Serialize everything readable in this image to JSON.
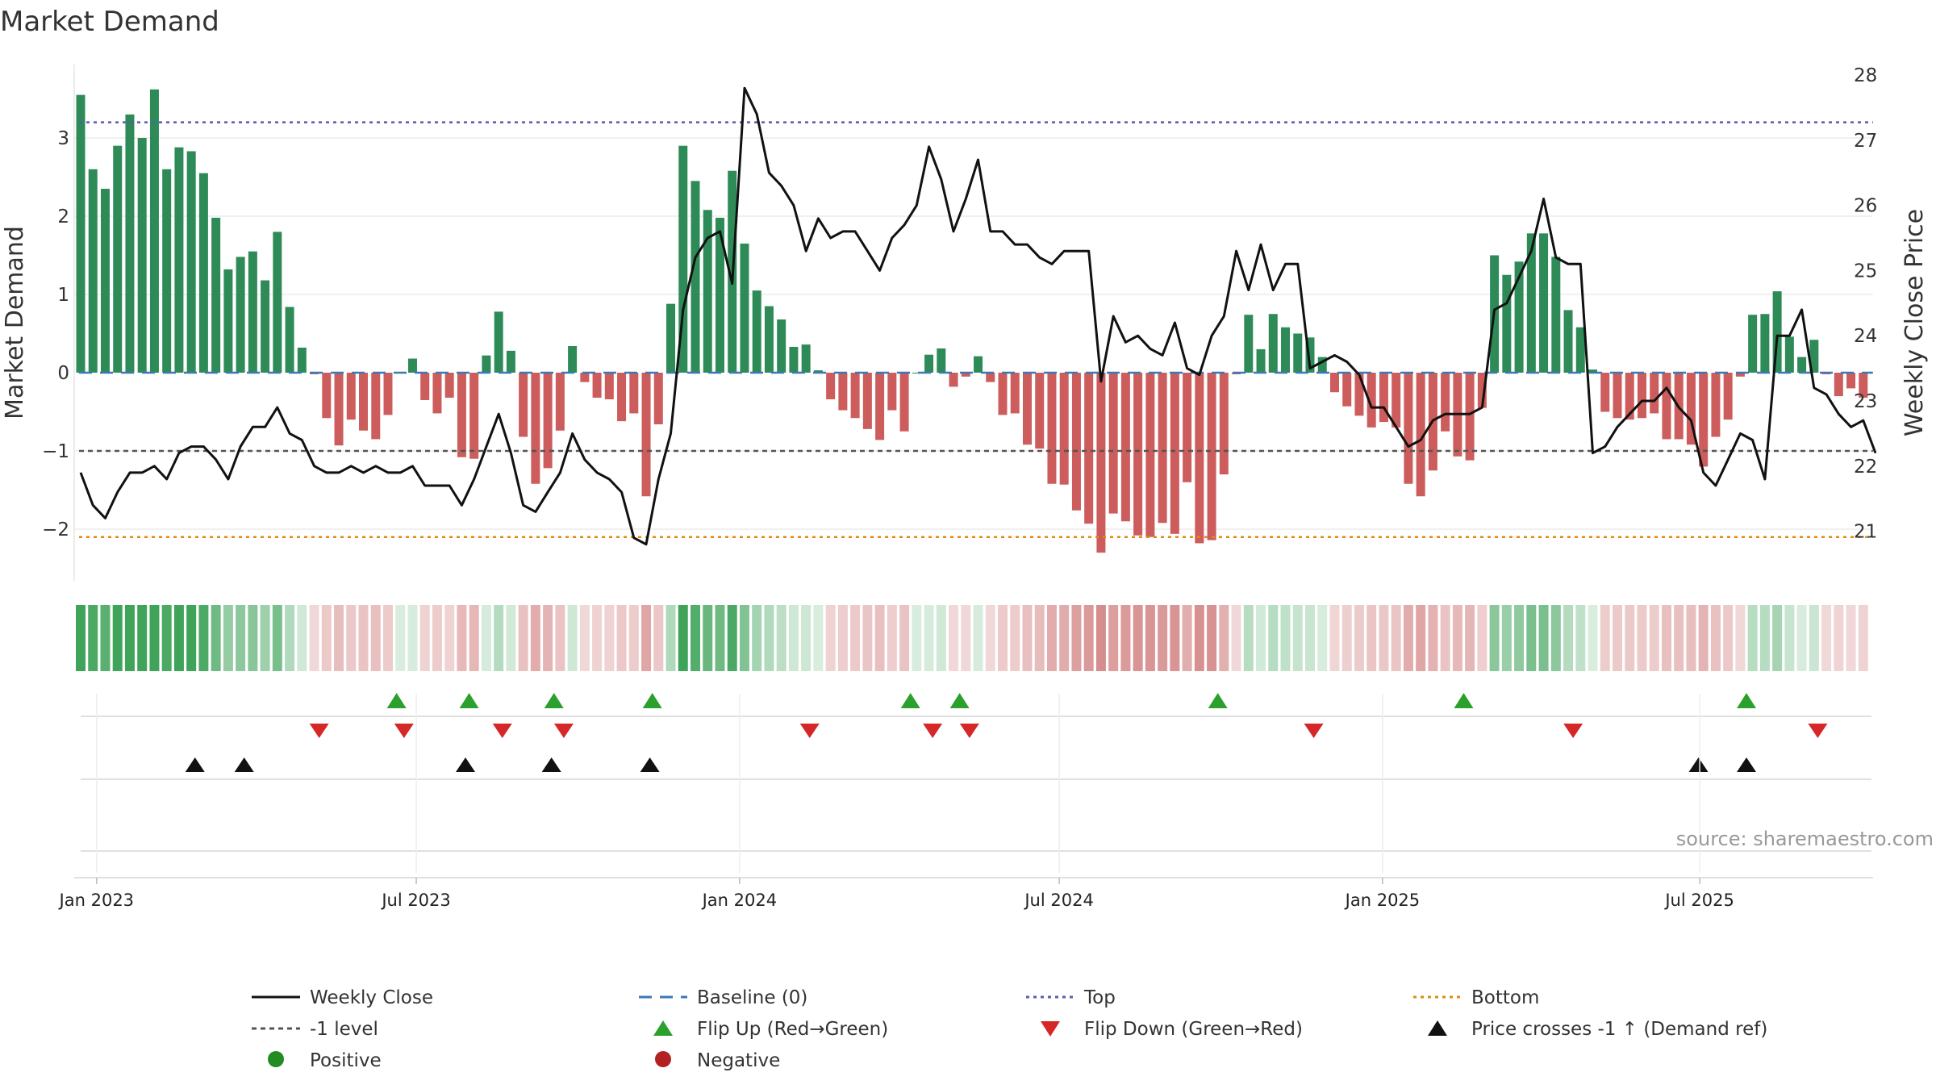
{
  "chart_data": {
    "type": "bar+line",
    "title": "Market Demand",
    "ylabel_left": "Market Demand",
    "ylabel_right": "Weekly Close Price",
    "ylim_left": [
      -2.6,
      3.8
    ],
    "ylim_right": [
      20.3,
      28.3
    ],
    "yticks_left": [
      3,
      2,
      1,
      0,
      -1,
      -2
    ],
    "yticks_left_labels": [
      "3",
      "2",
      "1",
      "0",
      "−1",
      "−2"
    ],
    "yticks_right": [
      28,
      27,
      26,
      25,
      24,
      23,
      22,
      21
    ],
    "x_start": "2022-12-23",
    "x_step_weeks": 1,
    "xticks": [
      {
        "label": "Jan 2023",
        "week": 1.3
      },
      {
        "label": "Jul 2023",
        "week": 27.3
      },
      {
        "label": "Jan 2024",
        "week": 53.6
      },
      {
        "label": "Jul 2024",
        "week": 79.6
      },
      {
        "label": "Jan 2025",
        "week": 105.9
      },
      {
        "label": "Jul 2025",
        "week": 131.7
      }
    ],
    "demand": [
      3.55,
      2.6,
      2.35,
      2.9,
      3.3,
      3.0,
      3.62,
      2.6,
      2.88,
      2.83,
      2.55,
      1.98,
      1.32,
      1.48,
      1.55,
      1.18,
      1.8,
      0.84,
      0.32,
      -0.02,
      -0.58,
      -0.93,
      -0.6,
      -0.74,
      -0.85,
      -0.54,
      0.0,
      0.18,
      -0.35,
      -0.52,
      -0.32,
      -1.08,
      -1.1,
      0.22,
      0.78,
      0.28,
      -0.82,
      -1.42,
      -1.22,
      -0.74,
      0.34,
      -0.12,
      -0.32,
      -0.34,
      -0.62,
      -0.52,
      -1.58,
      -0.66,
      0.88,
      2.9,
      2.45,
      2.08,
      1.98,
      2.58,
      1.65,
      1.05,
      0.85,
      0.68,
      0.33,
      0.36,
      0.03,
      -0.34,
      -0.48,
      -0.58,
      -0.72,
      -0.86,
      -0.48,
      -0.75,
      0.0,
      0.23,
      0.31,
      -0.18,
      -0.05,
      0.21,
      -0.12,
      -0.54,
      -0.52,
      -0.92,
      -0.97,
      -1.42,
      -1.43,
      -1.76,
      -1.93,
      -2.3,
      -1.8,
      -1.9,
      -2.08,
      -2.1,
      -1.92,
      -2.06,
      -1.4,
      -2.18,
      -2.14,
      -1.3,
      -0.02,
      0.74,
      0.3,
      0.75,
      0.58,
      0.5,
      0.45,
      0.2,
      -0.25,
      -0.43,
      -0.55,
      -0.7,
      -0.63,
      -0.7,
      -1.42,
      -1.58,
      -1.25,
      -0.75,
      -1.07,
      -1.12,
      -0.45,
      1.5,
      1.25,
      1.42,
      1.78,
      1.78,
      1.48,
      0.8,
      0.58,
      0.04,
      -0.5,
      -0.58,
      -0.6,
      -0.58,
      -0.52,
      -0.85,
      -0.85,
      -0.92,
      -1.2,
      -0.82,
      -0.6,
      -0.05,
      0.74,
      0.75,
      1.04,
      0.46,
      0.2,
      0.42,
      -0.02,
      -0.3,
      -0.2,
      -0.32
    ],
    "close": [
      21.9,
      21.4,
      21.2,
      21.6,
      21.9,
      21.9,
      22.0,
      21.8,
      22.2,
      22.3,
      22.3,
      22.1,
      21.8,
      22.3,
      22.6,
      22.6,
      22.9,
      22.5,
      22.4,
      22.0,
      21.9,
      21.9,
      22.0,
      21.9,
      22.0,
      21.9,
      21.9,
      22.0,
      21.7,
      21.7,
      21.7,
      21.4,
      21.8,
      22.3,
      22.8,
      22.2,
      21.4,
      21.3,
      21.6,
      21.9,
      22.5,
      22.1,
      21.9,
      21.8,
      21.6,
      20.9,
      20.8,
      21.8,
      22.5,
      24.4,
      25.2,
      25.5,
      25.6,
      24.8,
      27.8,
      27.4,
      26.5,
      26.3,
      26.0,
      25.3,
      25.8,
      25.5,
      25.6,
      25.6,
      25.3,
      25.0,
      25.5,
      25.7,
      26.0,
      26.9,
      26.4,
      25.6,
      26.1,
      26.7,
      25.6,
      25.6,
      25.4,
      25.4,
      25.2,
      25.1,
      25.3,
      25.3,
      25.3,
      23.3,
      24.3,
      23.9,
      24.0,
      23.8,
      23.7,
      24.2,
      23.5,
      23.4,
      24.0,
      24.3,
      25.3,
      24.7,
      25.4,
      24.7,
      25.1,
      25.1,
      23.5,
      23.6,
      23.7,
      23.6,
      23.4,
      22.9,
      22.9,
      22.6,
      22.3,
      22.4,
      22.7,
      22.8,
      22.8,
      22.8,
      22.9,
      24.4,
      24.5,
      24.9,
      25.3,
      26.1,
      25.2,
      25.1,
      25.1,
      22.2,
      22.3,
      22.6,
      22.8,
      23.0,
      23.0,
      23.2,
      22.9,
      22.7,
      21.9,
      21.7,
      22.1,
      22.5,
      22.4,
      21.8,
      24.0,
      24.0,
      24.4,
      23.2,
      23.1,
      22.8,
      22.6,
      22.7,
      22.2
    ],
    "reference_lines": [
      {
        "name": "Top",
        "axis": "left",
        "value": 3.2,
        "color": "#5a5ab4"
      },
      {
        "name": "-1 level",
        "axis": "left",
        "value": -1.0,
        "color": "#555555"
      },
      {
        "name": "Bottom",
        "axis": "left",
        "value": -2.1,
        "color": "#e08a16"
      },
      {
        "name": "Baseline (0)",
        "axis": "left",
        "value": 0,
        "color": "#3b78b4"
      }
    ],
    "flip_up_weeks": [
      25.7,
      31.6,
      38.5,
      46.5,
      67.5,
      71.5,
      92.5,
      112.5,
      135.5
    ],
    "flip_down_weeks": [
      19.4,
      26.3,
      34.3,
      39.3,
      59.3,
      69.3,
      72.3,
      100.3,
      121.4,
      141.3
    ],
    "cross_weeks": [
      9.3,
      13.3,
      31.3,
      38.3,
      46.3,
      131.6,
      135.5
    ]
  },
  "colors": {
    "positive": "#2e8b57",
    "negative": "#cd5c5c",
    "close_line": "#111111",
    "flip_up": "#2ca02c",
    "flip_down": "#d62728",
    "cross": "#111111",
    "positive_dot": "#228b22",
    "negative_dot": "#b22222"
  },
  "legend": {
    "weekly_close": "Weekly Close",
    "baseline": "Baseline (0)",
    "top": "Top",
    "bottom": "Bottom",
    "minus_one": "-1 level",
    "flip_up": "Flip Up (Red→Green)",
    "flip_down": "Flip Down (Green→Red)",
    "cross": "Price crosses -1 ↑ (Demand ref)",
    "positive": "Positive",
    "negative": "Negative"
  },
  "source": "source: sharemaestro.com"
}
